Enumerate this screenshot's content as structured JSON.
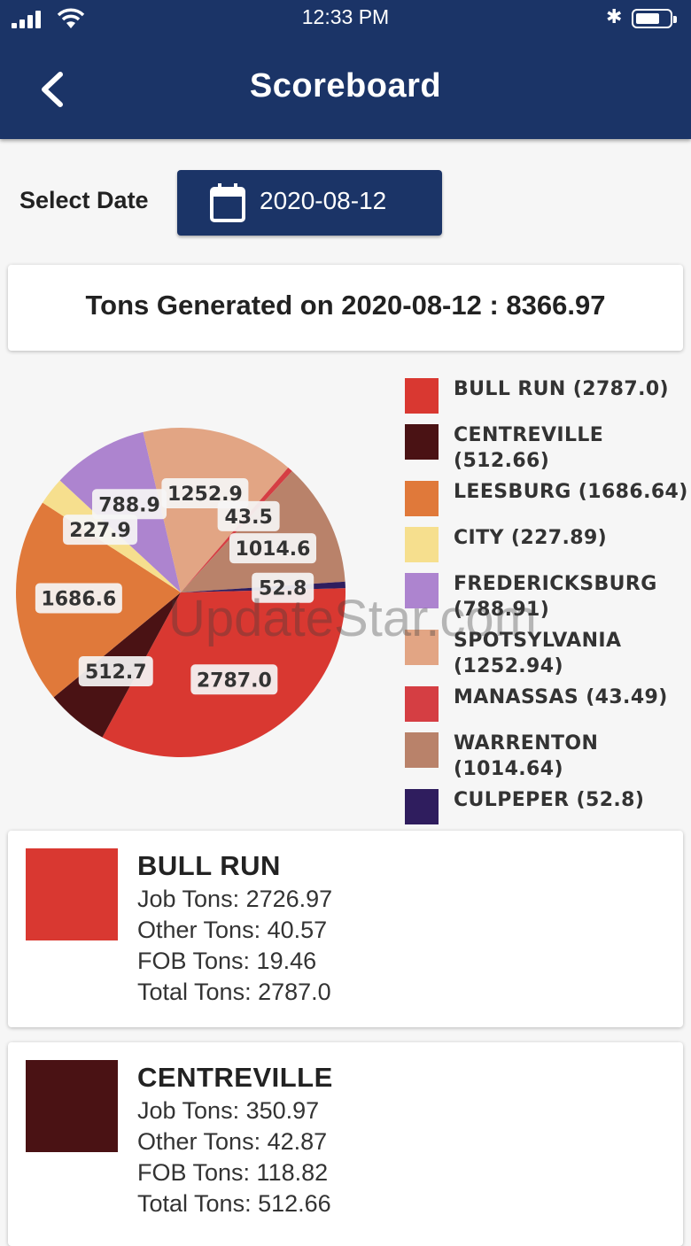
{
  "status_bar": {
    "time": "12:33 PM"
  },
  "header": {
    "title": "Scoreboard"
  },
  "date_selector": {
    "label": "Select Date",
    "value": "2020-08-12"
  },
  "summary": {
    "text": "Tons Generated on 2020-08-12 : 8366.97"
  },
  "watermark": "UpdateStar.com",
  "chart_data": {
    "type": "pie",
    "categories": [
      "BULL RUN",
      "CENTREVILLE",
      "LEESBURG",
      "CITY",
      "FREDERICKSBURG",
      "SPOTSYLVANIA",
      "MANASSAS",
      "WARRENTON",
      "CULPEPER"
    ],
    "values": [
      2787.0,
      512.66,
      1686.64,
      227.89,
      788.91,
      1252.94,
      43.49,
      1014.64,
      52.8
    ],
    "slice_labels": [
      "2787.0",
      "512.7",
      "1686.6",
      "227.9",
      "788.9",
      "1252.9",
      "43.5",
      "1014.6",
      "52.8"
    ],
    "legend_labels": [
      "BULL RUN (2787.0)",
      "CENTREVILLE (512.66)",
      "LEESBURG (1686.64)",
      "CITY (227.89)",
      "FREDERICKSBURG (788.91)",
      "SPOTSYLVANIA (1252.94)",
      "MANASSAS (43.49)",
      "WARRENTON (1014.64)",
      "CULPEPER (52.8)"
    ],
    "colors": [
      "#d93831",
      "#4a1214",
      "#e0793a",
      "#f6df8e",
      "#ad84cf",
      "#e2a584",
      "#d53e43",
      "#b9826a",
      "#2f1d5e"
    ],
    "legend_position": "right"
  },
  "cards": [
    {
      "name": "BULL RUN",
      "color": "#d93831",
      "lines": [
        "Job Tons: 2726.97",
        "Other Tons: 40.57",
        "FOB Tons: 19.46",
        "Total Tons: 2787.0"
      ]
    },
    {
      "name": "CENTREVILLE",
      "color": "#4a1214",
      "lines": [
        "Job Tons: 350.97",
        "Other Tons: 42.87",
        "FOB Tons: 118.82",
        "Total Tons: 512.66"
      ]
    }
  ]
}
